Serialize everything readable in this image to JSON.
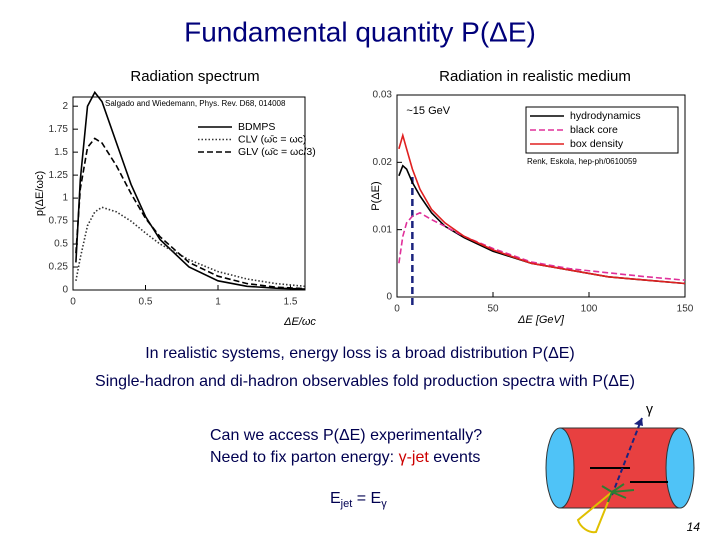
{
  "title": "Fundamental quantity P(ΔE)",
  "chart_data": [
    {
      "type": "line",
      "title": "Radiation spectrum",
      "x_label": "ΔE/ωc",
      "y_label": "p(ΔE/ωc)",
      "annotation": "Salgado and Wiedemann, Phys. Rev. D68, 014008",
      "x": [
        0.02,
        0.05,
        0.1,
        0.15,
        0.2,
        0.3,
        0.4,
        0.5,
        0.6,
        0.8,
        1.0,
        1.2,
        1.4,
        1.6
      ],
      "series": [
        {
          "name": "BDMPS",
          "color": "#000000",
          "style": "solid",
          "values": [
            0.3,
            1.2,
            2.0,
            2.15,
            2.05,
            1.6,
            1.15,
            0.8,
            0.55,
            0.25,
            0.1,
            0.04,
            0.02,
            0.01
          ]
        },
        {
          "name": "CLV (ω̄c = ωc)",
          "color": "#333333",
          "style": "dotted",
          "values": [
            0.1,
            0.35,
            0.7,
            0.85,
            0.9,
            0.85,
            0.75,
            0.62,
            0.5,
            0.33,
            0.2,
            0.12,
            0.07,
            0.04
          ]
        },
        {
          "name": "GLV (ω̄c = ωc/3)",
          "color": "#000000",
          "style": "dashed",
          "values": [
            0.4,
            1.1,
            1.55,
            1.65,
            1.6,
            1.35,
            1.05,
            0.78,
            0.58,
            0.3,
            0.15,
            0.07,
            0.03,
            0.015
          ]
        }
      ],
      "xlim": [
        0,
        1.6
      ],
      "ylim": [
        0,
        2.1
      ],
      "xticks": [
        0,
        0.5,
        1,
        1.5
      ],
      "yticks": [
        0,
        0.25,
        0.5,
        0.75,
        1,
        1.25,
        1.5,
        1.75,
        2
      ]
    },
    {
      "type": "line",
      "title": "Radiation in realistic medium",
      "x_label": "ΔE [GeV]",
      "y_label": "P(ΔE)",
      "annotation": "Renk, Eskola, hep-ph/0610059",
      "marker": {
        "text": "~15 GeV",
        "x": 8
      },
      "x": [
        1,
        3,
        5,
        8,
        12,
        18,
        25,
        35,
        50,
        70,
        90,
        110,
        130,
        150
      ],
      "series": [
        {
          "name": "hydrodynamics",
          "color": "#000000",
          "style": "solid",
          "values": [
            0.018,
            0.0195,
            0.019,
            0.017,
            0.015,
            0.0125,
            0.0105,
            0.0088,
            0.0068,
            0.005,
            0.004,
            0.003,
            0.0025,
            0.002
          ]
        },
        {
          "name": "black core",
          "color": "#e0309a",
          "style": "dashed",
          "values": [
            0.005,
            0.009,
            0.011,
            0.012,
            0.0125,
            0.0115,
            0.0105,
            0.009,
            0.0072,
            0.0052,
            0.0042,
            0.0036,
            0.003,
            0.0025
          ]
        },
        {
          "name": "box density",
          "color": "#e02020",
          "style": "solid",
          "values": [
            0.022,
            0.024,
            0.022,
            0.019,
            0.016,
            0.013,
            0.011,
            0.009,
            0.007,
            0.005,
            0.004,
            0.003,
            0.0025,
            0.002
          ]
        }
      ],
      "xlim": [
        0,
        150
      ],
      "ylim": [
        0,
        0.03
      ],
      "xticks": [
        0,
        50,
        100,
        150
      ],
      "yticks": [
        0,
        0.01,
        0.02,
        0.03
      ]
    }
  ],
  "text": {
    "line1": "In realistic systems, energy loss is a broad distribution P(ΔE)",
    "line2": "Single-hadron and di-hadron observables fold production spectra with P(ΔE)",
    "gamma": "γ",
    "question": "Can we access P(ΔE) experimentally?",
    "need": {
      "plain": "Need to fix parton energy: ",
      "red": "γ-jet",
      "end": " events"
    },
    "ejet": {
      "e1": "E",
      "sub1": "jet",
      "eq": " = E",
      "sub2": "γ"
    },
    "page": "14"
  }
}
